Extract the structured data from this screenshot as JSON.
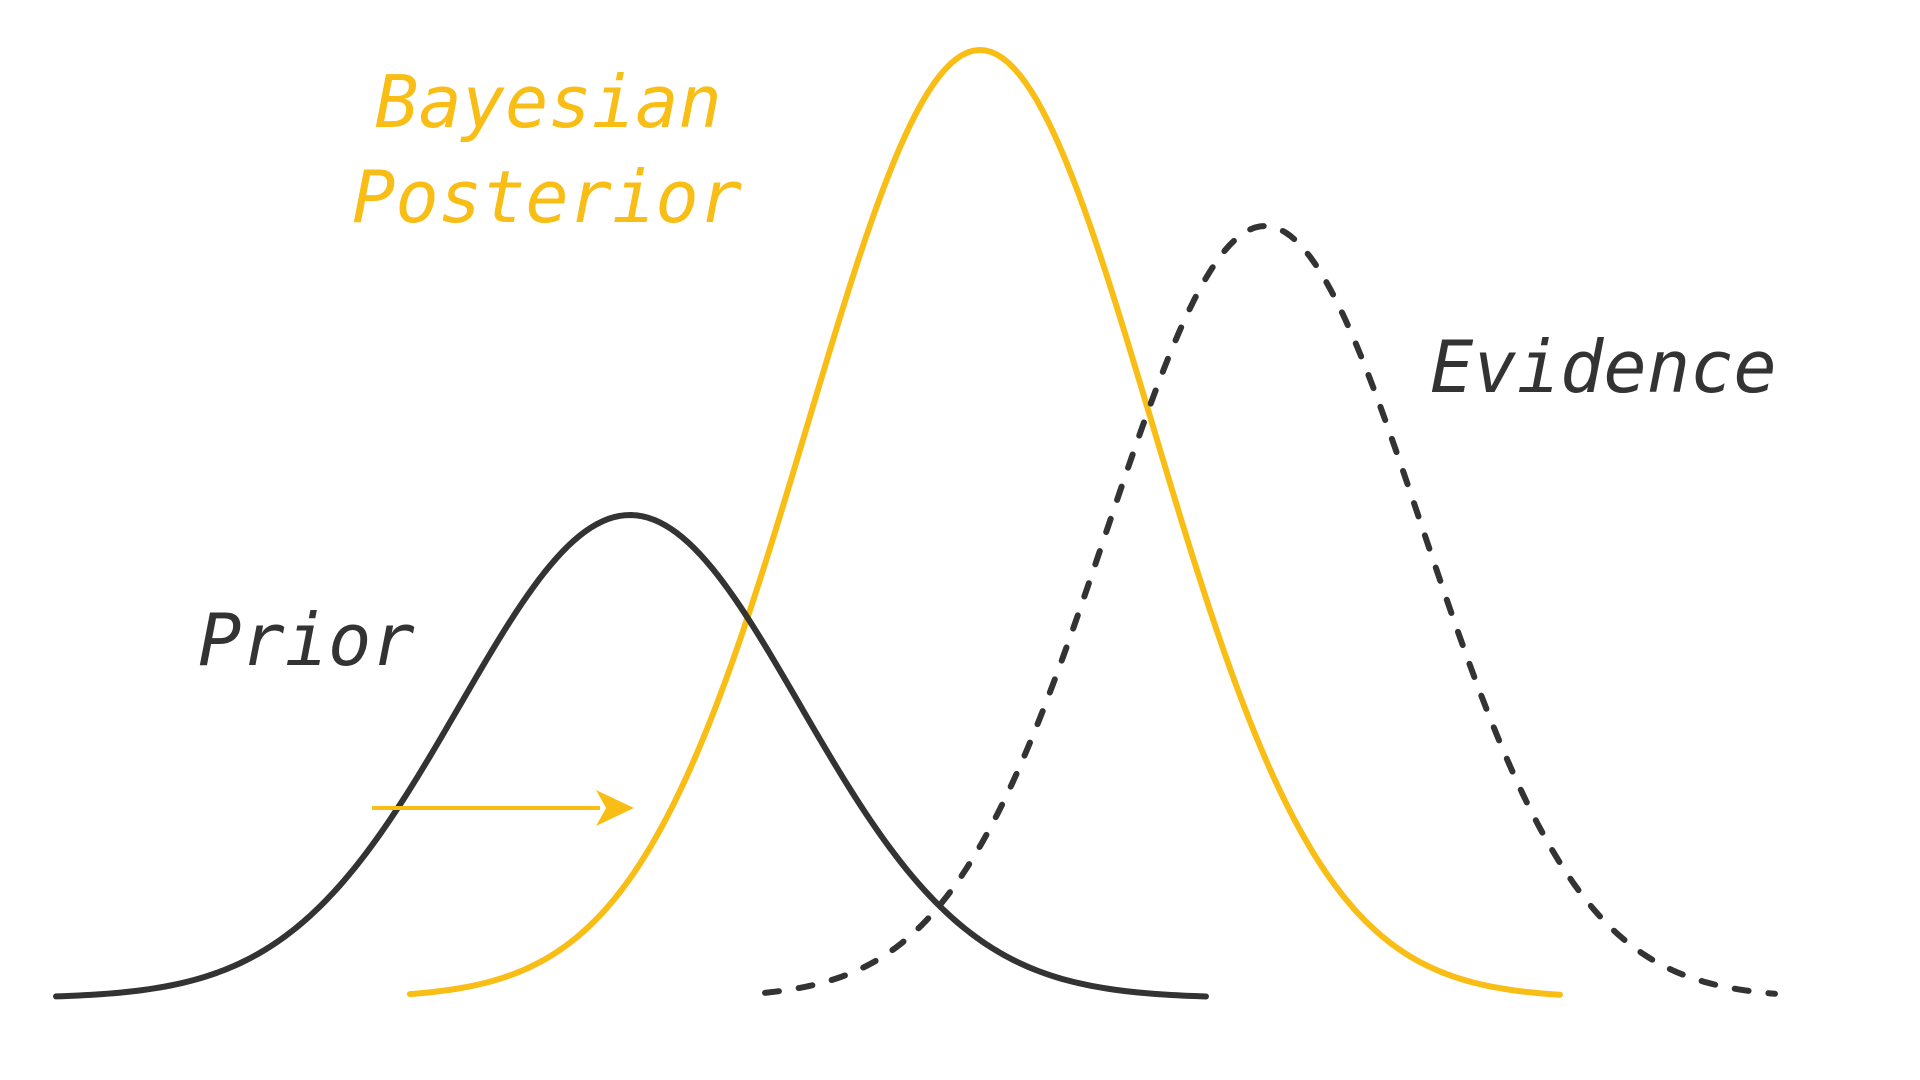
{
  "labels": {
    "posterior_line1": "Bayesian",
    "posterior_line2": "Posterior",
    "evidence": "Evidence",
    "prior": "Prior"
  },
  "colors": {
    "posterior": "#F9BE15",
    "prior": "#333333",
    "evidence": "#333333",
    "background": "#FFFFFF"
  },
  "curves": {
    "prior": {
      "style": "solid"
    },
    "posterior": {
      "style": "solid"
    },
    "evidence": {
      "style": "dashed"
    }
  },
  "arrow": {
    "meaning": "shift from prior to posterior",
    "direction": "right"
  }
}
